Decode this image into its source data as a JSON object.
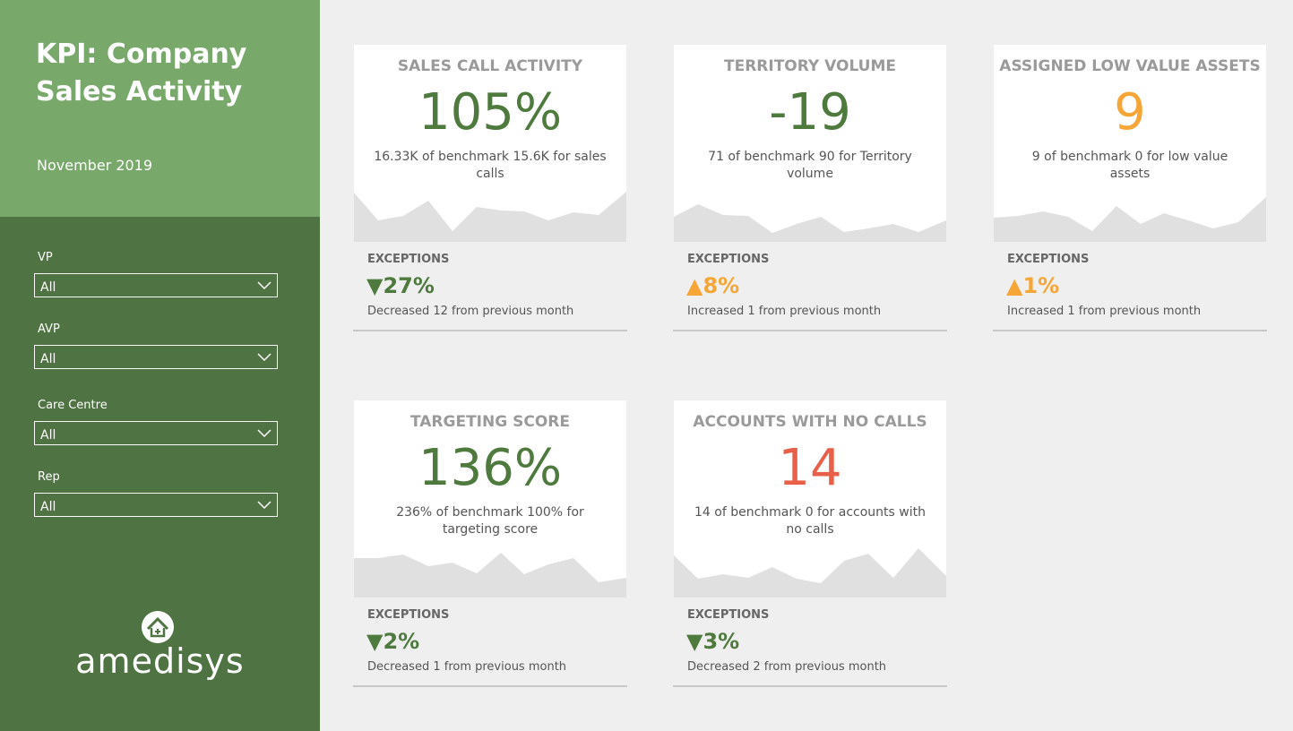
{
  "header": {
    "title": "KPI: Company Sales Activity",
    "date": "November 2019"
  },
  "filters": [
    {
      "label": "VP",
      "value": "All"
    },
    {
      "label": "AVP",
      "value": "All"
    },
    {
      "label": "Care Centre",
      "value": "All"
    },
    {
      "label": "Rep",
      "value": "All"
    }
  ],
  "logo": "amedisys",
  "cards": [
    {
      "title": "SALES CALL ACTIVITY",
      "value": "105%",
      "value_color": "#4e7a3e",
      "description": "16.33K of benchmark 15.6K for sales calls",
      "exceptions_label": "EXCEPTIONS",
      "change": "▼27%",
      "change_color": "#4e7a3e",
      "change_description": "Decreased 12 from previous month"
    },
    {
      "title": "TERRITORY VOLUME",
      "value": "-19",
      "value_color": "#4e7a3e",
      "description": "71 of benchmark 90 for Territory volume",
      "exceptions_label": "EXCEPTIONS",
      "change": "▲8%",
      "change_color": "#f5a637",
      "change_description": "Increased 1 from previous month"
    },
    {
      "title": "ASSIGNED LOW VALUE ASSETS",
      "value": "9",
      "value_color": "#f5a637",
      "description": "9 of benchmark 0 for low value assets",
      "exceptions_label": "EXCEPTIONS",
      "change": "▲1%",
      "change_color": "#f5a637",
      "change_description": "Increased 1 from previous month"
    },
    {
      "title": "TARGETING SCORE",
      "value": "136%",
      "value_color": "#4e7a3e",
      "description": "236% of benchmark 100% for targeting score",
      "exceptions_label": "EXCEPTIONS",
      "change": "▼2%",
      "change_color": "#4e7a3e",
      "change_description": "Decreased 1 from previous month"
    },
    {
      "title": "ACCOUNTS WITH NO CALLS",
      "value": "14",
      "value_color": "#e8604a",
      "description": "14 of benchmark 0 for accounts with no calls",
      "exceptions_label": "EXCEPTIONS",
      "change": "▼3%",
      "change_color": "#4e7a3e",
      "change_description": "Decreased 2 from previous month"
    }
  ]
}
